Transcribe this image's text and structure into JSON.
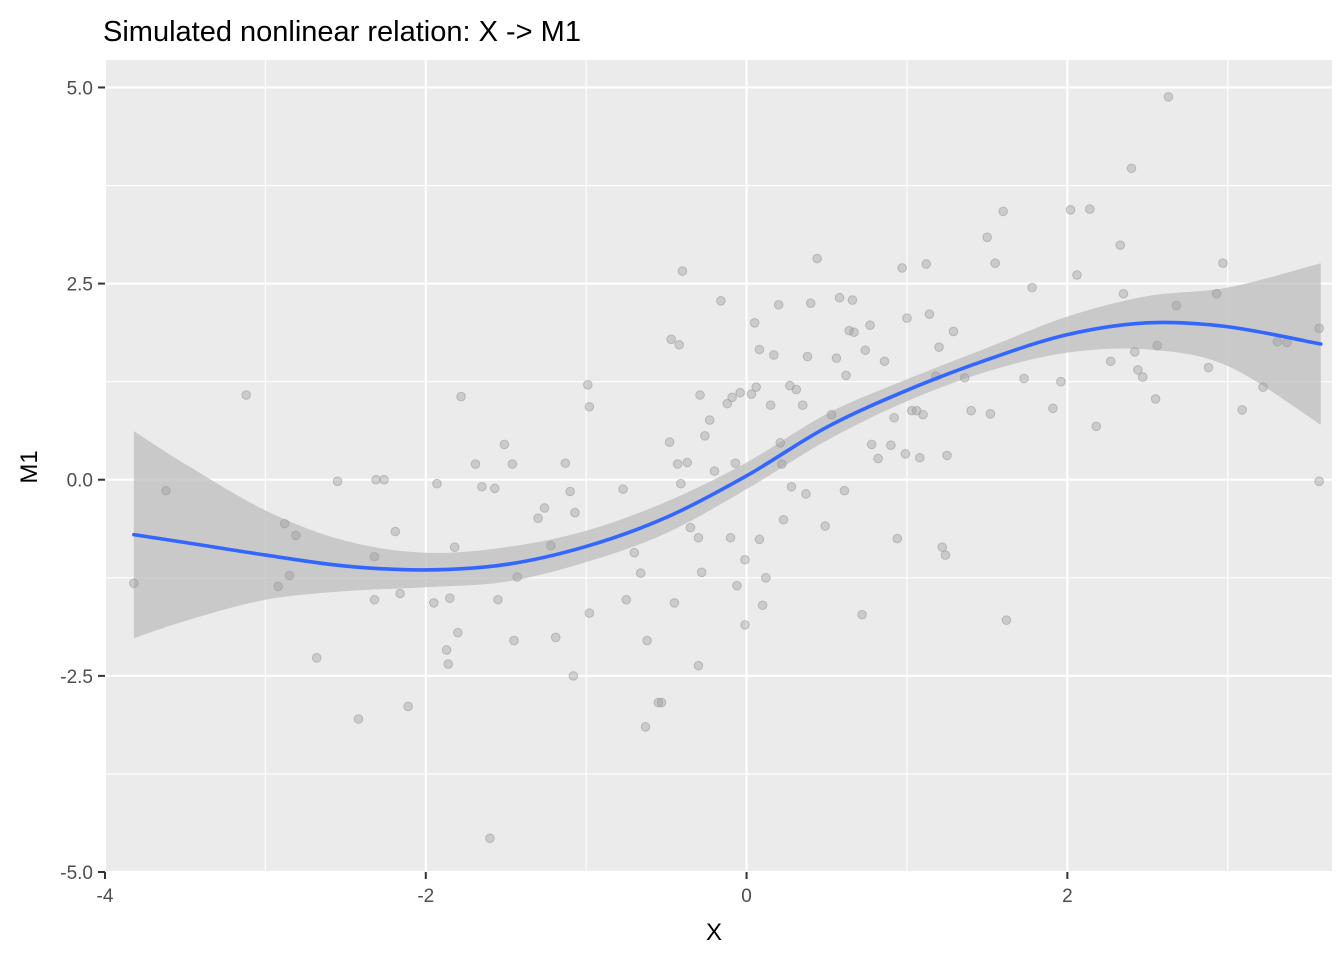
{
  "chart_data": {
    "type": "scatter",
    "title": "Simulated nonlinear relation: X -> M1",
    "xlabel": "X",
    "ylabel": "M1",
    "xlim": [
      -4.0,
      3.65
    ],
    "ylim": [
      -5.0,
      5.35
    ],
    "x_ticks": [
      -4,
      -2,
      0,
      2
    ],
    "x_tick_labels": [
      "-4",
      "-2",
      "0",
      "2"
    ],
    "y_ticks": [
      -5,
      -2.5,
      0,
      2.5,
      5
    ],
    "y_tick_labels": [
      "-5.0",
      "-2.5",
      "0.0",
      "2.5",
      "5.0"
    ],
    "grid": true,
    "panel_background": "#ebebeb",
    "grid_color": "#ffffff",
    "point_color": "#999999",
    "smooth_color": "#3366ff",
    "ribbon_color": "#bdbdbd",
    "series": [
      {
        "kind": "points",
        "points": [
          [
            -3.82,
            -1.32
          ],
          [
            -3.62,
            -0.14
          ],
          [
            -3.12,
            1.08
          ],
          [
            -2.88,
            -0.56
          ],
          [
            -2.92,
            -1.36
          ],
          [
            -2.85,
            -1.22
          ],
          [
            -2.81,
            -0.71
          ],
          [
            -2.68,
            -2.27
          ],
          [
            -2.55,
            -0.02
          ],
          [
            -2.42,
            -3.05
          ],
          [
            -2.32,
            -1.53
          ],
          [
            -2.32,
            -0.98
          ],
          [
            -2.31,
            0.0
          ],
          [
            -2.26,
            0.0
          ],
          [
            -2.19,
            -0.66
          ],
          [
            -2.16,
            -1.45
          ],
          [
            -2.11,
            -2.89
          ],
          [
            -1.95,
            -1.57
          ],
          [
            -1.93,
            -0.05
          ],
          [
            -1.87,
            -2.17
          ],
          [
            -1.86,
            -2.35
          ],
          [
            -1.85,
            -1.51
          ],
          [
            -1.82,
            -0.86
          ],
          [
            -1.8,
            -1.95
          ],
          [
            -1.78,
            1.06
          ],
          [
            -1.69,
            0.2
          ],
          [
            -1.65,
            -0.09
          ],
          [
            -1.6,
            -4.57
          ],
          [
            -1.57,
            -0.11
          ],
          [
            -1.55,
            -1.53
          ],
          [
            -1.51,
            0.45
          ],
          [
            -1.46,
            0.2
          ],
          [
            -1.45,
            -2.05
          ],
          [
            -1.43,
            -1.24
          ],
          [
            -1.3,
            -0.49
          ],
          [
            -1.26,
            -0.36
          ],
          [
            -1.22,
            -0.84
          ],
          [
            -1.19,
            -2.01
          ],
          [
            -1.13,
            0.21
          ],
          [
            -1.1,
            -0.15
          ],
          [
            -1.08,
            -2.5
          ],
          [
            -1.07,
            -0.42
          ],
          [
            -0.99,
            1.21
          ],
          [
            -0.98,
            -1.7
          ],
          [
            -0.98,
            0.93
          ],
          [
            -0.77,
            -0.12
          ],
          [
            -0.75,
            -1.53
          ],
          [
            -0.7,
            -0.93
          ],
          [
            -0.66,
            -1.19
          ],
          [
            -0.63,
            -3.15
          ],
          [
            -0.62,
            -2.05
          ],
          [
            -0.55,
            -2.84
          ],
          [
            -0.53,
            -2.84
          ],
          [
            -0.48,
            0.48
          ],
          [
            -0.47,
            1.79
          ],
          [
            -0.45,
            -1.57
          ],
          [
            -0.43,
            0.2
          ],
          [
            -0.42,
            1.72
          ],
          [
            -0.41,
            -0.05
          ],
          [
            -0.4,
            2.66
          ],
          [
            -0.37,
            0.22
          ],
          [
            -0.35,
            -0.61
          ],
          [
            -0.3,
            -0.74
          ],
          [
            -0.3,
            -2.37
          ],
          [
            -0.28,
            -1.18
          ],
          [
            -0.29,
            1.08
          ],
          [
            -0.26,
            0.56
          ],
          [
            -0.23,
            0.76
          ],
          [
            -0.2,
            0.11
          ],
          [
            -0.16,
            2.28
          ],
          [
            -0.12,
            0.97
          ],
          [
            -0.1,
            -0.74
          ],
          [
            -0.09,
            1.05
          ],
          [
            -0.07,
            0.21
          ],
          [
            -0.06,
            -1.35
          ],
          [
            -0.04,
            1.11
          ],
          [
            -0.01,
            -1.85
          ],
          [
            -0.01,
            -1.02
          ],
          [
            0.03,
            1.09
          ],
          [
            0.05,
            2.0
          ],
          [
            0.06,
            1.18
          ],
          [
            0.08,
            1.66
          ],
          [
            0.08,
            -0.76
          ],
          [
            0.1,
            -1.6
          ],
          [
            0.12,
            -1.25
          ],
          [
            0.15,
            0.95
          ],
          [
            0.17,
            1.59
          ],
          [
            0.2,
            2.23
          ],
          [
            0.21,
            0.47
          ],
          [
            0.22,
            0.2
          ],
          [
            0.23,
            -0.51
          ],
          [
            0.27,
            1.2
          ],
          [
            0.28,
            -0.09
          ],
          [
            0.31,
            1.15
          ],
          [
            0.35,
            0.95
          ],
          [
            0.37,
            -0.18
          ],
          [
            0.38,
            1.57
          ],
          [
            0.4,
            2.25
          ],
          [
            0.44,
            2.82
          ],
          [
            0.49,
            -0.59
          ],
          [
            0.53,
            0.83
          ],
          [
            0.56,
            1.55
          ],
          [
            0.58,
            2.32
          ],
          [
            0.61,
            -0.14
          ],
          [
            0.62,
            1.33
          ],
          [
            0.64,
            1.9
          ],
          [
            0.66,
            2.29
          ],
          [
            0.67,
            1.88
          ],
          [
            0.72,
            -1.72
          ],
          [
            0.74,
            1.65
          ],
          [
            0.77,
            1.97
          ],
          [
            0.78,
            0.45
          ],
          [
            0.82,
            0.27
          ],
          [
            0.86,
            1.51
          ],
          [
            0.9,
            0.44
          ],
          [
            0.92,
            0.79
          ],
          [
            0.94,
            -0.75
          ],
          [
            0.97,
            2.7
          ],
          [
            0.99,
            0.33
          ],
          [
            1.0,
            2.06
          ],
          [
            1.03,
            0.88
          ],
          [
            1.06,
            0.88
          ],
          [
            1.08,
            0.28
          ],
          [
            1.1,
            0.83
          ],
          [
            1.12,
            2.75
          ],
          [
            1.14,
            2.11
          ],
          [
            1.18,
            1.32
          ],
          [
            1.2,
            1.69
          ],
          [
            1.22,
            -0.86
          ],
          [
            1.24,
            -0.96
          ],
          [
            1.25,
            0.31
          ],
          [
            1.29,
            1.89
          ],
          [
            1.36,
            1.3
          ],
          [
            1.4,
            0.88
          ],
          [
            1.5,
            3.09
          ],
          [
            1.52,
            0.84
          ],
          [
            1.55,
            2.76
          ],
          [
            1.6,
            3.42
          ],
          [
            1.62,
            -1.79
          ],
          [
            1.73,
            1.29
          ],
          [
            1.78,
            2.45
          ],
          [
            1.91,
            0.91
          ],
          [
            1.96,
            1.25
          ],
          [
            2.02,
            3.44
          ],
          [
            2.06,
            2.61
          ],
          [
            2.14,
            3.45
          ],
          [
            2.18,
            0.68
          ],
          [
            2.27,
            1.51
          ],
          [
            2.33,
            2.99
          ],
          [
            2.35,
            2.37
          ],
          [
            2.4,
            3.97
          ],
          [
            2.42,
            1.63
          ],
          [
            2.44,
            1.4
          ],
          [
            2.47,
            1.31
          ],
          [
            2.55,
            1.03
          ],
          [
            2.56,
            1.71
          ],
          [
            2.63,
            4.88
          ],
          [
            2.68,
            2.22
          ],
          [
            2.88,
            1.43
          ],
          [
            2.93,
            2.37
          ],
          [
            2.97,
            2.76
          ],
          [
            3.09,
            0.89
          ],
          [
            3.22,
            1.18
          ],
          [
            3.31,
            1.76
          ],
          [
            3.37,
            1.75
          ],
          [
            3.57,
            1.93
          ],
          [
            3.57,
            -0.02
          ]
        ]
      },
      {
        "kind": "smooth",
        "x": [
          -3.82,
          -3.5,
          -3.0,
          -2.5,
          -2.0,
          -1.5,
          -1.0,
          -0.5,
          0.0,
          0.5,
          1.0,
          1.5,
          2.0,
          2.5,
          3.0,
          3.58
        ],
        "y": [
          -0.7,
          -0.8,
          -0.96,
          -1.1,
          -1.15,
          -1.08,
          -0.85,
          -0.48,
          0.05,
          0.67,
          1.14,
          1.53,
          1.85,
          2.0,
          1.95,
          1.73
        ],
        "lower": [
          -2.02,
          -1.8,
          -1.53,
          -1.42,
          -1.37,
          -1.3,
          -1.05,
          -0.68,
          -0.12,
          0.5,
          1.0,
          1.38,
          1.62,
          1.66,
          1.45,
          0.7
        ],
        "upper": [
          0.62,
          0.2,
          -0.39,
          -0.78,
          -0.93,
          -0.86,
          -0.65,
          -0.28,
          0.22,
          0.84,
          1.28,
          1.68,
          2.08,
          2.34,
          2.45,
          2.76
        ]
      }
    ]
  }
}
